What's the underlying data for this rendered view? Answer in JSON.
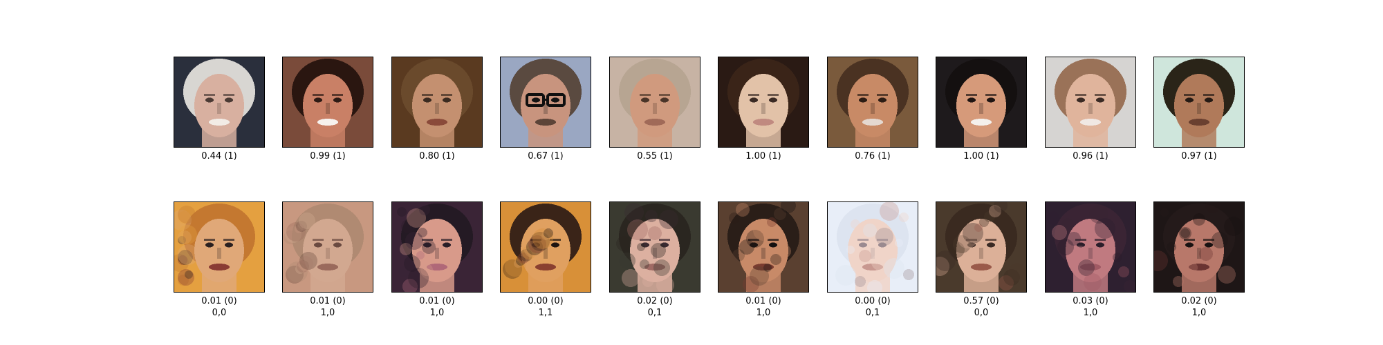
{
  "rows": [
    {
      "cells": [
        {
          "score": "0.44 (1)",
          "label": "",
          "picture": "face-photo",
          "bg": "#2a2f3c",
          "skin": "#d8b0a0",
          "hair": "#d8d6d2",
          "eyes": "#4a3a34",
          "mouth": "#f2ece6"
        },
        {
          "score": "0.99 (1)",
          "label": "",
          "picture": "face-photo",
          "bg": "#7a4b3a",
          "skin": "#c98066",
          "hair": "#2a1610",
          "eyes": "#2c1a14",
          "mouth": "#f6f2ee"
        },
        {
          "score": "0.80 (1)",
          "label": "",
          "picture": "face-photo",
          "bg": "#5a3a20",
          "skin": "#c49070",
          "hair": "#6a4a2c",
          "eyes": "#3a2a20",
          "mouth": "#8a4a3a"
        },
        {
          "score": "0.67 (1)",
          "label": "",
          "picture": "face-photo",
          "bg": "#9aa7c2",
          "skin": "#c8947e",
          "hair": "#5a4a40",
          "eyes": "#141414",
          "mouth": "#5c4438"
        },
        {
          "score": "0.55 (1)",
          "label": "",
          "picture": "face-photo",
          "bg": "#c7b3a4",
          "skin": "#d09a7e",
          "hair": "#b7a592",
          "eyes": "#4a3428",
          "mouth": "#a06a58"
        },
        {
          "score": "1.00 (1)",
          "label": "",
          "picture": "face-photo",
          "bg": "#2a1a14",
          "skin": "#e2c2a8",
          "hair": "#3a2418",
          "eyes": "#3a2a24",
          "mouth": "#c08a80"
        },
        {
          "score": "0.76 (1)",
          "label": "",
          "picture": "face-photo",
          "bg": "#7a5a3c",
          "skin": "#c88a66",
          "hair": "#4a3222",
          "eyes": "#2c1c14",
          "mouth": "#e4d8d0"
        },
        {
          "score": "1.00 (1)",
          "label": "",
          "picture": "face-photo",
          "bg": "#1e1a1c",
          "skin": "#d69a7a",
          "hair": "#141010",
          "eyes": "#1e1412",
          "mouth": "#f4f0ec"
        },
        {
          "score": "0.96 (1)",
          "label": "",
          "picture": "face-photo",
          "bg": "#d6d4d2",
          "skin": "#e0b49c",
          "hair": "#9a7258",
          "eyes": "#3a2a24",
          "mouth": "#f0e8e4"
        },
        {
          "score": "0.97 (1)",
          "label": "",
          "picture": "face-photo",
          "bg": "#cfe6dc",
          "skin": "#b07a5a",
          "hair": "#2a2418",
          "eyes": "#241a14",
          "mouth": "#6a4030"
        }
      ]
    },
    {
      "cells": [
        {
          "score": "0.01 (0)",
          "label": "0,0",
          "picture": "generated-face",
          "bg": "#e4a040",
          "skin": "#e0a878",
          "hair": "#c47830",
          "eyes": "#2a2020",
          "mouth": "#8a3c34"
        },
        {
          "score": "0.01 (0)",
          "label": "1,0",
          "picture": "generated-face",
          "bg": "#c89880",
          "skin": "#d2a890",
          "hair": "#b08a72",
          "eyes": "#6a4a40",
          "mouth": "#9a6a5c"
        },
        {
          "score": "0.01 (0)",
          "label": "1,0",
          "picture": "generated-face",
          "bg": "#3a2436",
          "skin": "#d89a8a",
          "hair": "#241a24",
          "eyes": "#2a1e28",
          "mouth": "#b06878"
        },
        {
          "score": "0.00 (0)",
          "label": "1,1",
          "picture": "generated-face",
          "bg": "#d89038",
          "skin": "#e0a060",
          "hair": "#3a2418",
          "eyes": "#1e1410",
          "mouth": "#8a4030"
        },
        {
          "score": "0.02 (0)",
          "label": "0,1",
          "picture": "generated-face",
          "bg": "#3a3a30",
          "skin": "#dcb0a0",
          "hair": "#2a2620",
          "eyes": "#3a2a30",
          "mouth": "#a06a64"
        },
        {
          "score": "0.01 (0)",
          "label": "1,0",
          "picture": "generated-face",
          "bg": "#5a4030",
          "skin": "#c88a68",
          "hair": "#2a1e18",
          "eyes": "#141010",
          "mouth": "#7a3c30"
        },
        {
          "score": "0.00 (0)",
          "label": "0,1",
          "picture": "generated-face",
          "bg": "#e8eef8",
          "skin": "#f0d4c8",
          "hair": "#dde4f0",
          "eyes": "#9a8a90",
          "mouth": "#c89890"
        },
        {
          "score": "0.57 (0)",
          "label": "0,0",
          "picture": "generated-face",
          "bg": "#4a3a2c",
          "skin": "#dcb098",
          "hair": "#3a2a20",
          "eyes": "#3a2a24",
          "mouth": "#9a5a4a"
        },
        {
          "score": "0.03 (0)",
          "label": "1,0",
          "picture": "generated-face",
          "bg": "#2e2030",
          "skin": "#c07a80",
          "hair": "#3a2434",
          "eyes": "#2a1e2a",
          "mouth": "#a05a64"
        },
        {
          "score": "0.02 (0)",
          "label": "1,0",
          "picture": "generated-face",
          "bg": "#1e1616",
          "skin": "#b8786a",
          "hair": "#241a1a",
          "eyes": "#181212",
          "mouth": "#6a3432"
        }
      ]
    }
  ]
}
